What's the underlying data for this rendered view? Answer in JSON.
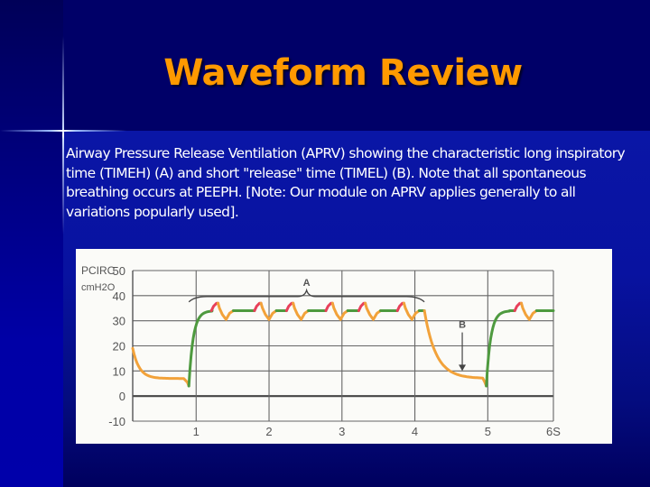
{
  "slide": {
    "title": "Waveform Review",
    "description": "Airway Pressure Release Ventilation (APRV) showing the characteristic long inspiratory time (TIMEH) (A) and short \"release\" time (TIMEL) (B). Note that all spontaneous breathing occurs at PEEPH. [Note: Our module on APRV applies generally to all variations popularly used]."
  },
  "chart_data": {
    "type": "line",
    "title": "",
    "ylabel_line1": "PCIRC",
    "ylabel_line2": "cmH2O",
    "xlabel": "",
    "ylim": [
      -10,
      50
    ],
    "xlim": [
      0.13,
      5.9
    ],
    "y_ticks": [
      "50",
      "40",
      "30",
      "20",
      "10",
      "0",
      "-10"
    ],
    "y_tick_values": [
      50,
      40,
      30,
      20,
      10,
      0,
      -10
    ],
    "x_ticks": [
      "1",
      "2",
      "3",
      "4",
      "5",
      "6S"
    ],
    "x_tick_values": [
      1,
      2,
      3,
      4,
      5,
      5.9
    ],
    "grid": true,
    "waveform": {
      "peep_high": 34,
      "peep_low": 7,
      "start_pressure": 19,
      "pressure_rise_start": 0.9,
      "release_start": 4.13,
      "release_end": 4.98,
      "end_time": 5.9,
      "spontaneous_breath_times": [
        1.21,
        1.8,
        2.24,
        2.78,
        3.23,
        3.76,
        5.37
      ],
      "spontaneous_breath_peak": 37,
      "spontaneous_breath_trough": 30.5
    },
    "colors": {
      "release": "#f2a23a",
      "inspiration": "#4e9a3f",
      "breath_rise": "#e8405a",
      "grid": "#666666"
    },
    "annotations": [
      {
        "label": "A",
        "meaning": "TIMEH",
        "from": 0.9,
        "to": 4.13,
        "y": 40
      },
      {
        "label": "B",
        "meaning": "TIMEL",
        "x": 4.65,
        "y_from": 25,
        "y_to": 10
      }
    ]
  }
}
